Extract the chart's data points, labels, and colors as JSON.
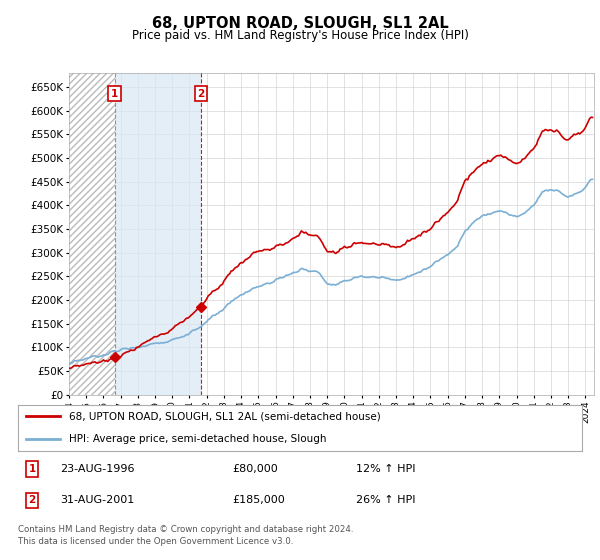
{
  "title": "68, UPTON ROAD, SLOUGH, SL1 2AL",
  "subtitle": "Price paid vs. HM Land Registry's House Price Index (HPI)",
  "ylabel_ticks": [
    0,
    50000,
    100000,
    150000,
    200000,
    250000,
    300000,
    350000,
    400000,
    450000,
    500000,
    550000,
    600000,
    650000
  ],
  "ylim": [
    0,
    680000
  ],
  "xlim_start": 1994.0,
  "xlim_end": 2024.5,
  "sale1_date": 1996.646,
  "sale1_price": 80000,
  "sale2_date": 2001.662,
  "sale2_price": 185000,
  "red_line_color": "#cc0000",
  "blue_line_color": "#7BAFD4",
  "shade_color": "#d8e8f5",
  "marker_box_color": "#cc0000",
  "legend_label_red": "68, UPTON ROAD, SLOUGH, SL1 2AL (semi-detached house)",
  "legend_label_blue": "HPI: Average price, semi-detached house, Slough",
  "annotation1": [
    "1",
    "23-AUG-1996",
    "£80,000",
    "12% ↑ HPI"
  ],
  "annotation2": [
    "2",
    "31-AUG-2001",
    "£185,000",
    "26% ↑ HPI"
  ],
  "footer": "Contains HM Land Registry data © Crown copyright and database right 2024.\nThis data is licensed under the Open Government Licence v3.0.",
  "background_color": "#ffffff",
  "grid_color": "#cccccc"
}
